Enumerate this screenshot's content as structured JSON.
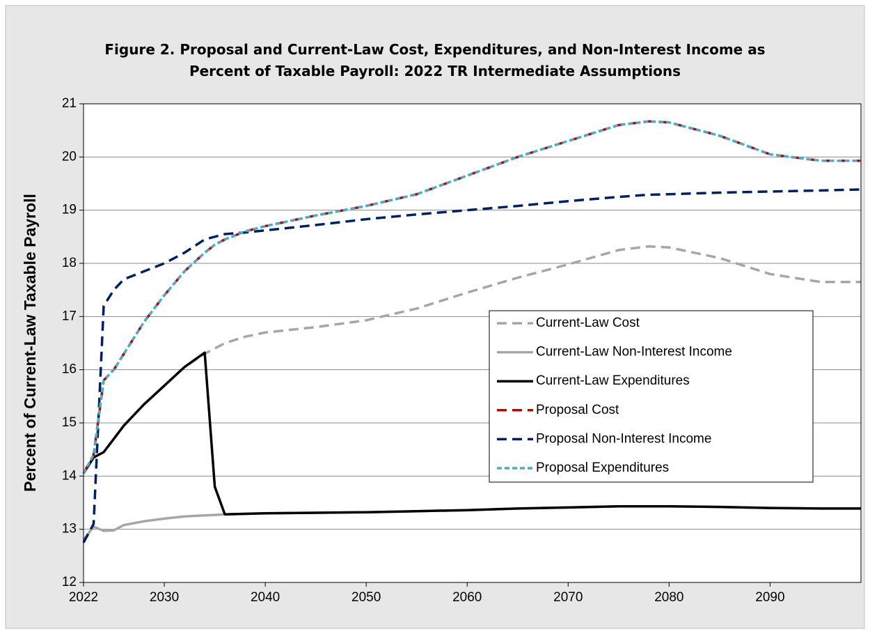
{
  "chart_data": {
    "type": "line",
    "title": "Figure 2. Proposal and Current-Law Cost, Expenditures, and Non-Interest Income as Percent of Taxable Payroll: 2022 TR Intermediate Assumptions",
    "y_label": "Percent of Current-Law Taxable Payroll",
    "x": [
      2022,
      2023,
      2024,
      2025,
      2026,
      2028,
      2030,
      2032,
      2034,
      2035,
      2036,
      2038,
      2040,
      2045,
      2050,
      2055,
      2060,
      2065,
      2070,
      2075,
      2078,
      2080,
      2085,
      2090,
      2095,
      2099
    ],
    "xlim": [
      2022,
      2099
    ],
    "xticks": [
      2022,
      2030,
      2040,
      2050,
      2060,
      2070,
      2080,
      2090
    ],
    "ylim": [
      12,
      21
    ],
    "yticks": [
      12,
      13,
      14,
      15,
      16,
      17,
      18,
      19,
      20,
      21
    ],
    "grid": true,
    "legend": "right",
    "series": [
      {
        "name": "Current-Law Cost",
        "color": "#a6a6a6",
        "style": "dashed",
        "values": [
          14.05,
          14.35,
          14.45,
          14.7,
          14.95,
          15.35,
          15.7,
          16.05,
          16.3,
          16.4,
          16.5,
          16.62,
          16.7,
          16.8,
          16.93,
          17.15,
          17.45,
          17.73,
          17.98,
          18.25,
          18.32,
          18.3,
          18.1,
          17.8,
          17.65,
          17.65
        ]
      },
      {
        "name": "Current-Law Non-Interest Income",
        "color": "#a6a6a6",
        "style": "solid",
        "values": [
          12.8,
          13.05,
          12.97,
          12.98,
          13.08,
          13.15,
          13.2,
          13.24,
          13.26,
          13.27,
          13.28,
          13.29,
          13.3,
          13.31,
          13.32,
          13.34,
          13.36,
          13.39,
          13.41,
          13.43,
          13.43,
          13.43,
          13.42,
          13.4,
          13.39,
          13.39
        ]
      },
      {
        "name": "Current-Law Expenditures",
        "color": "#000000",
        "style": "solid",
        "values": [
          14.05,
          14.35,
          14.45,
          14.7,
          14.95,
          15.35,
          15.7,
          16.05,
          16.32,
          13.8,
          13.28,
          13.29,
          13.3,
          13.31,
          13.32,
          13.34,
          13.36,
          13.39,
          13.41,
          13.43,
          13.43,
          13.43,
          13.42,
          13.4,
          13.39,
          13.39
        ]
      },
      {
        "name": "Proposal Cost",
        "color": "#c00000",
        "style": "dashed",
        "values": [
          14.05,
          14.4,
          15.8,
          16.0,
          16.3,
          16.9,
          17.4,
          17.85,
          18.2,
          18.35,
          18.45,
          18.6,
          18.7,
          18.9,
          19.08,
          19.3,
          19.65,
          20.0,
          20.3,
          20.6,
          20.67,
          20.65,
          20.4,
          20.05,
          19.93,
          19.93
        ]
      },
      {
        "name": "Proposal Non-Interest Income",
        "color": "#002060",
        "style": "dashed",
        "values": [
          12.75,
          13.1,
          17.2,
          17.5,
          17.7,
          17.85,
          18.0,
          18.2,
          18.45,
          18.5,
          18.55,
          18.58,
          18.62,
          18.72,
          18.83,
          18.92,
          19.0,
          19.08,
          19.17,
          19.25,
          19.29,
          19.3,
          19.33,
          19.35,
          19.37,
          19.39
        ]
      },
      {
        "name": "Proposal Expenditures",
        "color": "#4bacc6",
        "style": "dotted",
        "values": [
          14.05,
          14.4,
          15.8,
          16.0,
          16.3,
          16.9,
          17.4,
          17.85,
          18.2,
          18.35,
          18.45,
          18.6,
          18.7,
          18.9,
          19.08,
          19.3,
          19.65,
          20.0,
          20.3,
          20.6,
          20.67,
          20.65,
          20.4,
          20.05,
          19.93,
          19.93
        ]
      }
    ]
  }
}
